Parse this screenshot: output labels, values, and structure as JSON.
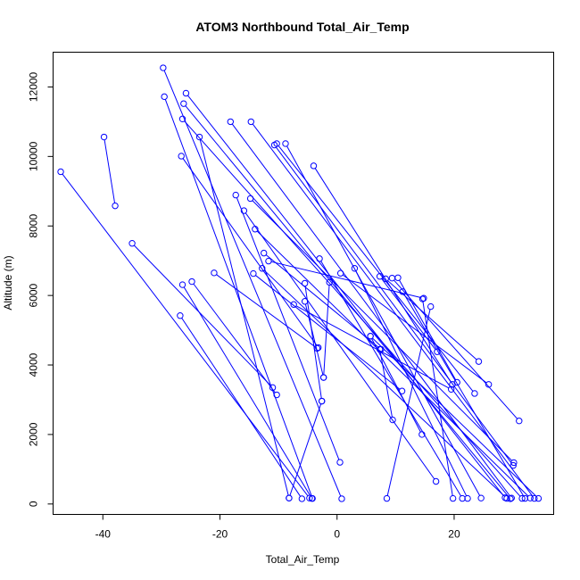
{
  "chart_data": {
    "type": "line",
    "title": "ATOM3 Northbound Total_Air_Temp",
    "xlabel": "Total_Air_Temp",
    "ylabel": "Altitude (m)",
    "xlim": [
      -48.5,
      37
    ],
    "ylim": [
      -300,
      13000
    ],
    "xticks": [
      -40,
      -20,
      0,
      20
    ],
    "yticks": [
      0,
      2000,
      4000,
      6000,
      8000,
      10000,
      12000
    ],
    "grid": false,
    "style": {
      "color": "#0000ff",
      "marker": "open-circle",
      "line": "solid"
    },
    "series": [
      {
        "points": [
          [
            -29.7,
            12550
          ],
          [
            0.8,
            150
          ]
        ]
      },
      {
        "points": [
          [
            -29.5,
            11720
          ],
          [
            -4.2,
            160
          ]
        ]
      },
      {
        "points": [
          [
            -25.8,
            11820
          ],
          [
            28.7,
            180
          ]
        ]
      },
      {
        "points": [
          [
            -26.2,
            11520
          ],
          [
            29.6,
            150
          ]
        ]
      },
      {
        "points": [
          [
            -26.4,
            11080
          ],
          [
            31.6,
            160
          ]
        ]
      },
      {
        "points": [
          [
            -18.2,
            11000
          ],
          [
            29.8,
            170
          ]
        ]
      },
      {
        "points": [
          [
            -14.7,
            11000
          ],
          [
            33.7,
            160
          ]
        ]
      },
      {
        "points": [
          [
            -10.3,
            10370
          ],
          [
            23.5,
            3180
          ]
        ]
      },
      {
        "points": [
          [
            -10.7,
            10330
          ],
          [
            30.1,
            1110
          ]
        ]
      },
      {
        "points": [
          [
            -8.8,
            10370
          ],
          [
            24.6,
            170
          ]
        ]
      },
      {
        "points": [
          [
            -23.5,
            10560
          ],
          [
            -8.2,
            170
          ]
        ]
      },
      {
        "points": [
          [
            -39.8,
            10560
          ],
          [
            -37.9,
            8580
          ]
        ]
      },
      {
        "points": [
          [
            -26.6,
            10010
          ],
          [
            -3.2,
            4500
          ]
        ]
      },
      {
        "points": [
          [
            -47.2,
            9560
          ],
          [
            -4.7,
            170
          ]
        ]
      },
      {
        "points": [
          [
            -4.0,
            9730
          ],
          [
            19.7,
            3440
          ]
        ]
      },
      {
        "points": [
          [
            -17.3,
            8890
          ],
          [
            0.5,
            1200
          ]
        ]
      },
      {
        "points": [
          [
            -14.8,
            8790
          ],
          [
            30.2,
            1190
          ]
        ]
      },
      {
        "points": [
          [
            -15.9,
            8440
          ],
          [
            16.9,
            650
          ]
        ]
      },
      {
        "points": [
          [
            -14.0,
            7910
          ],
          [
            33.0,
            170
          ]
        ]
      },
      {
        "points": [
          [
            -35.0,
            7500
          ],
          [
            -11.0,
            3350
          ]
        ]
      },
      {
        "points": [
          [
            -12.5,
            7220
          ],
          [
            7.5,
            4450
          ]
        ]
      },
      {
        "points": [
          [
            -11.7,
            6990
          ],
          [
            14.8,
            5920
          ]
        ]
      },
      {
        "points": [
          [
            -3.0,
            7060
          ],
          [
            21.4,
            160
          ]
        ]
      },
      {
        "points": [
          [
            -12.8,
            6780
          ],
          [
            29.0,
            160
          ]
        ]
      },
      {
        "points": [
          [
            -14.3,
            6630
          ],
          [
            11.1,
            3250
          ]
        ]
      },
      {
        "points": [
          [
            3.0,
            6780
          ],
          [
            22.3,
            160
          ]
        ]
      },
      {
        "points": [
          [
            0.6,
            6640
          ],
          [
            25.9,
            3440
          ]
        ]
      },
      {
        "points": [
          [
            -21.0,
            6650
          ],
          [
            -3.4,
            4480
          ]
        ]
      },
      {
        "points": [
          [
            -24.8,
            6400
          ],
          [
            -10.3,
            3140
          ]
        ]
      },
      {
        "points": [
          [
            -26.4,
            6310
          ],
          [
            -4.3,
            160
          ]
        ]
      },
      {
        "points": [
          [
            7.3,
            6550
          ],
          [
            17.1,
            4380
          ]
        ]
      },
      {
        "points": [
          [
            9.4,
            6500
          ],
          [
            31.1,
            2390
          ]
        ]
      },
      {
        "points": [
          [
            10.4,
            6510
          ],
          [
            20.5,
            3500
          ]
        ]
      },
      {
        "points": [
          [
            8.3,
            6480
          ],
          [
            24.2,
            4100
          ]
        ]
      },
      {
        "points": [
          [
            -1.3,
            6380
          ],
          [
            -2.3,
            3640
          ]
        ]
      },
      {
        "points": [
          [
            -5.5,
            6350
          ],
          [
            -2.6,
            2960
          ]
        ]
      },
      {
        "points": [
          [
            -26.8,
            5420
          ],
          [
            -6.0,
            150
          ]
        ]
      },
      {
        "points": [
          [
            -5.5,
            5830
          ],
          [
            -2.3,
            3640
          ]
        ]
      },
      {
        "points": [
          [
            -7.4,
            5740
          ],
          [
            19.5,
            3300
          ]
        ]
      },
      {
        "points": [
          [
            11.2,
            6110
          ],
          [
            32.1,
            160
          ]
        ]
      },
      {
        "points": [
          [
            16.0,
            5680
          ],
          [
            8.5,
            160
          ]
        ]
      },
      {
        "points": [
          [
            5.7,
            4830
          ],
          [
            14.5,
            2000
          ]
        ]
      },
      {
        "points": [
          [
            -2.6,
            2960
          ],
          [
            -8.2,
            170
          ]
        ]
      },
      {
        "points": [
          [
            14.6,
            5900
          ],
          [
            19.8,
            160
          ]
        ]
      },
      {
        "points": [
          [
            5.7,
            4830
          ],
          [
            34.4,
            160
          ]
        ]
      },
      {
        "points": [
          [
            7.3,
            4450
          ],
          [
            9.5,
            2420
          ]
        ]
      }
    ]
  }
}
